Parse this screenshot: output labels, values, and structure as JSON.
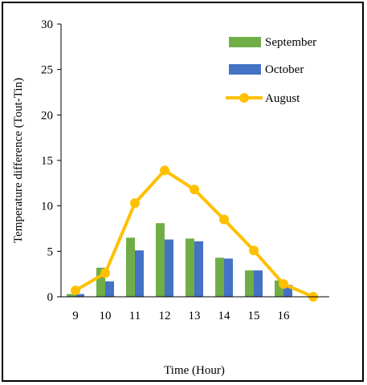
{
  "chart_data": {
    "type": "bar",
    "categories": [
      "9",
      "10",
      "11",
      "12",
      "13",
      "14",
      "15",
      "16",
      ""
    ],
    "xlabel": "Time (Hour)",
    "ylabel": "Temperature difference (Tout-Tin)",
    "ylim": [
      0,
      30
    ],
    "yticks": [
      0,
      5,
      10,
      15,
      20,
      25,
      30
    ],
    "grid": false,
    "legend_position": "top-right",
    "series": [
      {
        "name": "September",
        "kind": "bar",
        "color": "#70AD47",
        "values": [
          0.3,
          3.2,
          6.5,
          8.1,
          6.4,
          4.3,
          2.9,
          1.8,
          null
        ]
      },
      {
        "name": "October",
        "kind": "bar",
        "color": "#4472C4",
        "values": [
          0.3,
          1.7,
          5.1,
          6.3,
          6.1,
          4.2,
          2.9,
          1.3,
          null
        ]
      },
      {
        "name": "August",
        "kind": "line",
        "color": "#FFC000",
        "values": [
          0.7,
          2.6,
          10.3,
          13.9,
          11.8,
          8.5,
          5.1,
          1.4,
          0.0
        ]
      }
    ]
  }
}
